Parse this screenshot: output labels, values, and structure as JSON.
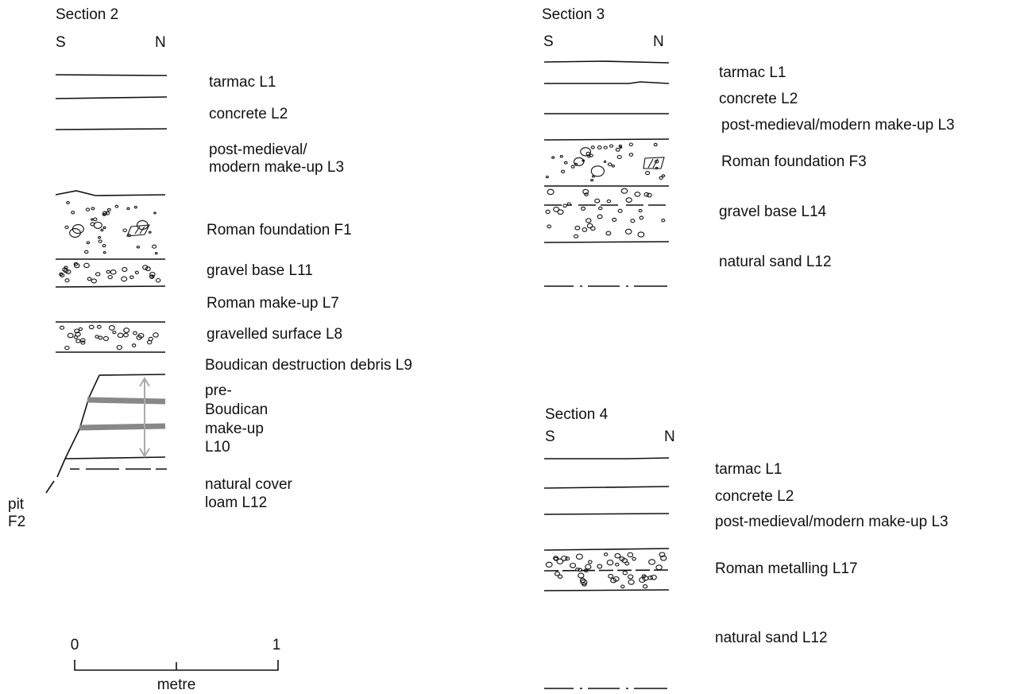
{
  "sections": [
    {
      "title": "Section 2",
      "left": "S",
      "right": "N",
      "layers": [
        [
          "tarmac L1"
        ],
        [
          "concrete L2"
        ],
        [
          "post-medieval/",
          "modern make-up L3"
        ],
        [
          "Roman foundation F1"
        ],
        [
          "gravel base L11"
        ],
        [
          "Roman make-up L7"
        ],
        [
          "gravelled surface L8"
        ],
        [
          "Boudican destruction  debris L9"
        ],
        [
          "pre-",
          "Boudican",
          "make-up",
          "L10"
        ],
        [
          "natural cover",
          "loam L12"
        ]
      ],
      "feature": [
        "pit",
        "F2"
      ]
    },
    {
      "title": "Section 3",
      "left": "S",
      "right": "N",
      "layers": [
        [
          "tarmac L1"
        ],
        [
          "concrete L2"
        ],
        [
          "post-medieval/modern  make-up L3"
        ],
        [
          "Roman foundation F3"
        ],
        [
          "gravel base L14"
        ],
        [
          "natural sand L12"
        ]
      ]
    },
    {
      "title": "Section 4",
      "left": "S",
      "right": "N",
      "layers": [
        [
          "tarmac L1"
        ],
        [
          "concrete L2"
        ],
        [
          "post-medieval/modern make-up L3"
        ],
        [
          "Roman metalling L17"
        ],
        [
          "natural sand L12"
        ]
      ]
    }
  ],
  "scale": {
    "start": "0",
    "end": "1",
    "unit": "metre"
  }
}
